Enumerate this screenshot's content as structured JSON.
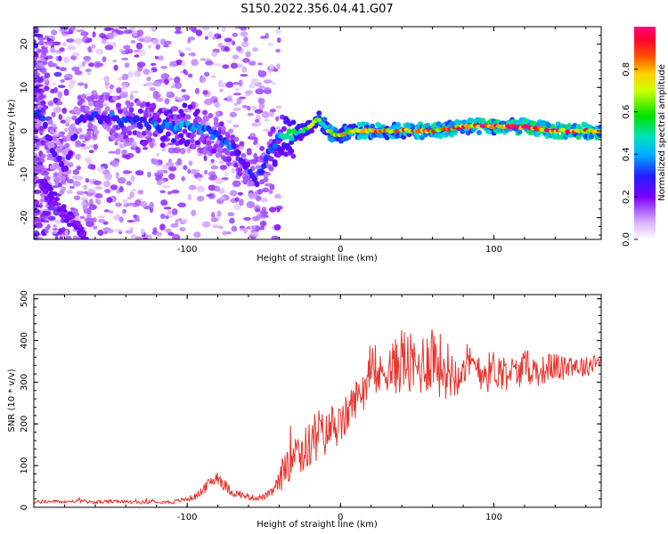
{
  "title": "S150.2022.356.04.41.G07",
  "chart_data": [
    {
      "type": "heatmap",
      "xlabel": "Height of straight line (km)",
      "ylabel": "Frequency (Hz)",
      "xlim": [
        -200,
        170
      ],
      "ylim": [
        -25,
        24
      ],
      "x_ticks": [
        -100,
        0,
        100
      ],
      "y_ticks": [
        -20,
        -10,
        0,
        10,
        20
      ],
      "colorbar": {
        "label": "Normalized spectral amplitude",
        "range": [
          0,
          1
        ],
        "ticks": [
          0.0,
          0.2,
          0.4,
          0.6,
          0.8
        ]
      },
      "ridge": {
        "x": [
          -200,
          -195,
          -190,
          -185,
          -180,
          -170,
          -160,
          -150,
          -140,
          -130,
          -120,
          -110,
          -100,
          -90,
          -80,
          -70,
          -60,
          -55,
          -50,
          -45,
          -40,
          -35,
          -30,
          -25,
          -20,
          -15,
          -10,
          -5,
          0,
          5,
          10,
          20,
          40,
          60,
          80,
          100,
          120,
          140,
          170
        ],
        "frequency": [
          5,
          3,
          -2,
          -6,
          -9,
          3,
          3,
          3,
          2,
          2,
          1,
          1,
          1,
          0,
          -1,
          -4,
          -9,
          -12,
          -8,
          -4,
          -2,
          -1,
          -1,
          0,
          1,
          3,
          1,
          -1,
          -1,
          0,
          0,
          0,
          0,
          0,
          1,
          1,
          1,
          0,
          0
        ],
        "amplitude": [
          0.3,
          0.3,
          0.25,
          0.2,
          0.2,
          0.25,
          0.25,
          0.3,
          0.3,
          0.3,
          0.35,
          0.4,
          0.4,
          0.35,
          0.3,
          0.3,
          0.25,
          0.25,
          0.3,
          0.35,
          0.45,
          0.5,
          0.5,
          0.55,
          0.6,
          0.6,
          0.55,
          0.65,
          0.65,
          0.7,
          0.75,
          0.75,
          0.8,
          0.8,
          0.8,
          0.85,
          0.9,
          0.85,
          0.8
        ]
      }
    },
    {
      "type": "line",
      "xlabel": "Height of straight line (km)",
      "ylabel": "SNR (10 * v/v)",
      "xlim": [
        -200,
        170
      ],
      "ylim": [
        0,
        510
      ],
      "x_ticks": [
        -100,
        0,
        100
      ],
      "y_ticks": [
        0,
        100,
        200,
        300,
        400,
        500
      ],
      "series": [
        {
          "color": "#e8352e",
          "x": [
            -200,
            -190,
            -180,
            -170,
            -160,
            -150,
            -140,
            -130,
            -120,
            -110,
            -100,
            -95,
            -90,
            -85,
            -80,
            -75,
            -70,
            -65,
            -60,
            -55,
            -50,
            -45,
            -40,
            -35,
            -30,
            -25,
            -20,
            -15,
            -10,
            -5,
            0,
            5,
            10,
            15,
            20,
            25,
            30,
            35,
            40,
            45,
            50,
            55,
            60,
            65,
            70,
            75,
            80,
            85,
            90,
            95,
            100,
            105,
            110,
            115,
            120,
            125,
            130,
            135,
            140,
            145,
            150,
            155,
            160,
            165,
            170
          ],
          "values": [
            12,
            14,
            13,
            15,
            12,
            14,
            13,
            12,
            14,
            12,
            20,
            25,
            40,
            60,
            75,
            50,
            35,
            30,
            25,
            22,
            25,
            35,
            60,
            110,
            160,
            130,
            150,
            190,
            170,
            200,
            190,
            230,
            260,
            290,
            320,
            310,
            340,
            330,
            360,
            340,
            330,
            350,
            370,
            340,
            330,
            320,
            350,
            330,
            340,
            320,
            335,
            325,
            330,
            320,
            340,
            330,
            325,
            335,
            340,
            330,
            345,
            340,
            335,
            350,
            355
          ],
          "amplitude": [
            4,
            4,
            4,
            4,
            4,
            4,
            4,
            4,
            4,
            4,
            6,
            8,
            10,
            15,
            20,
            15,
            10,
            8,
            7,
            6,
            8,
            10,
            25,
            60,
            70,
            60,
            55,
            55,
            50,
            55,
            50,
            50,
            45,
            45,
            45,
            50,
            60,
            70,
            80,
            80,
            70,
            80,
            90,
            80,
            70,
            60,
            60,
            55,
            55,
            50,
            45,
            45,
            40,
            40,
            40,
            40,
            35,
            35,
            35,
            30,
            30,
            30,
            25,
            25,
            25
          ]
        }
      ]
    }
  ]
}
